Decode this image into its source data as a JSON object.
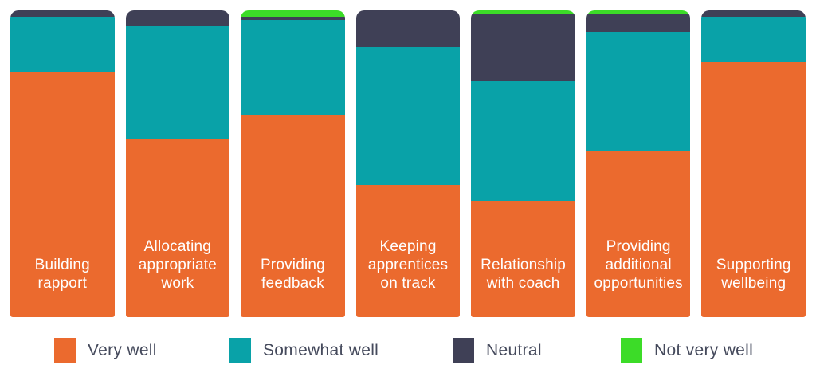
{
  "chart_data": {
    "type": "bar",
    "stacked": true,
    "unit": "percent",
    "ylim": [
      0,
      100
    ],
    "grid": false,
    "axes_visible": false,
    "legend_position": "bottom",
    "categories": [
      "Building rapport",
      "Allocating appropriate work",
      "Providing feedback",
      "Keeping apprentices on track",
      "Relationship with coach",
      "Providing additional opportunities",
      "Supporting wellbeing"
    ],
    "category_lines": [
      [
        "Building",
        "rapport"
      ],
      [
        "Allocating",
        "appropriate",
        "work"
      ],
      [
        "Providing",
        "feedback"
      ],
      [
        "Keeping",
        "apprentices",
        "on track"
      ],
      [
        "Relationship",
        "with coach"
      ],
      [
        "Providing",
        "additional",
        "opportunities"
      ],
      [
        "Supporting",
        "wellbeing"
      ]
    ],
    "series": [
      {
        "name": "Very well",
        "color": "#EB6A2E",
        "values": [
          80,
          58,
          66,
          43,
          38,
          54,
          83
        ]
      },
      {
        "name": "Somewhat well",
        "color": "#09A2A8",
        "values": [
          18,
          37,
          31,
          45,
          39,
          39,
          15
        ]
      },
      {
        "name": "Neutral",
        "color": "#3F4056",
        "values": [
          2,
          5,
          1,
          12,
          22,
          6,
          2
        ]
      },
      {
        "name": "Not very well",
        "color": "#3CDC28",
        "values": [
          0,
          0,
          2,
          0,
          1,
          1,
          0
        ]
      }
    ]
  },
  "colors": {
    "very_well": "#EB6A2E",
    "somewhat_well": "#09A2A8",
    "neutral": "#3F4056",
    "not_very_well": "#3CDC28",
    "bar_label_text": "#FFFFFF",
    "legend_text": "#454A5C",
    "background": "#FFFFFF"
  }
}
